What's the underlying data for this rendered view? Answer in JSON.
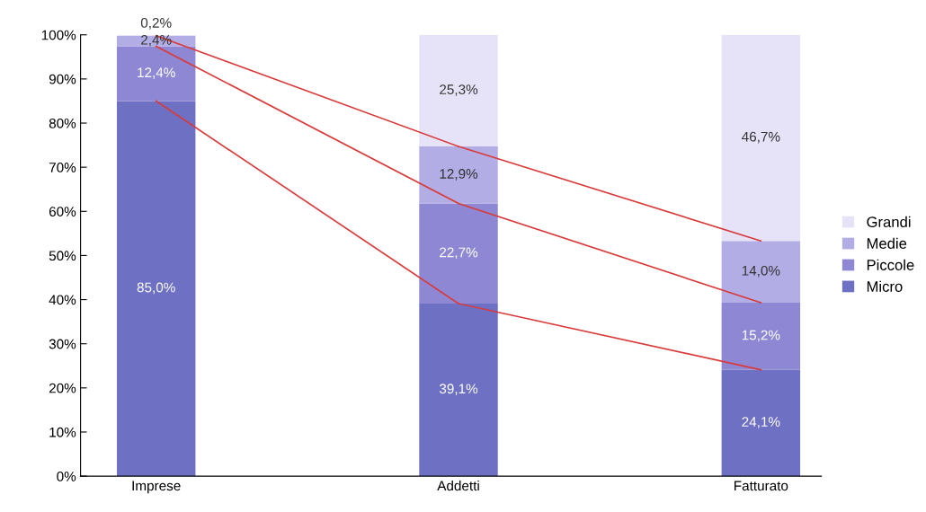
{
  "chart_data": {
    "type": "bar",
    "stacked": true,
    "categories": [
      "Imprese",
      "Addetti",
      "Fatturato"
    ],
    "series": [
      {
        "name": "Micro",
        "color": "#6e70c4",
        "values": [
          85.0,
          39.1,
          24.1
        ],
        "value_labels": [
          "85,0%",
          "39,1%",
          "24,1%"
        ]
      },
      {
        "name": "Piccole",
        "color": "#8e88d4",
        "values": [
          12.4,
          22.7,
          15.2
        ],
        "value_labels": [
          "12,4%",
          "22,7%",
          "15,2%"
        ]
      },
      {
        "name": "Medie",
        "color": "#b3ade6",
        "values": [
          2.4,
          12.9,
          14.0
        ],
        "value_labels": [
          "2,4%",
          "12,9%",
          "14,0%"
        ]
      },
      {
        "name": "Grandi",
        "color": "#e6e3f8",
        "values": [
          0.2,
          25.3,
          46.7
        ],
        "value_labels": [
          "0,2%",
          "25,3%",
          "46,7%"
        ]
      },
      {
        "type": "line",
        "color": "#d93a3a",
        "values": [
          85.0,
          39.1,
          24.1
        ]
      },
      {
        "type": "line",
        "color": "#d93a3a",
        "values": [
          97.4,
          61.8,
          39.3
        ]
      },
      {
        "type": "line",
        "color": "#d93a3a",
        "values": [
          99.8,
          74.7,
          53.3
        ]
      }
    ],
    "ylim": [
      0,
      100
    ],
    "yticks": [
      {
        "value": 0,
        "label": "0%"
      },
      {
        "value": 10,
        "label": "10%"
      },
      {
        "value": 20,
        "label": "20%"
      },
      {
        "value": 30,
        "label": "30%"
      },
      {
        "value": 40,
        "label": "40%"
      },
      {
        "value": 50,
        "label": "50%"
      },
      {
        "value": 60,
        "label": "60%"
      },
      {
        "value": 70,
        "label": "70%"
      },
      {
        "value": 80,
        "label": "80%"
      },
      {
        "value": 90,
        "label": "90%"
      },
      {
        "value": 100,
        "label": "100%"
      }
    ],
    "grid": false,
    "legend": "right"
  }
}
